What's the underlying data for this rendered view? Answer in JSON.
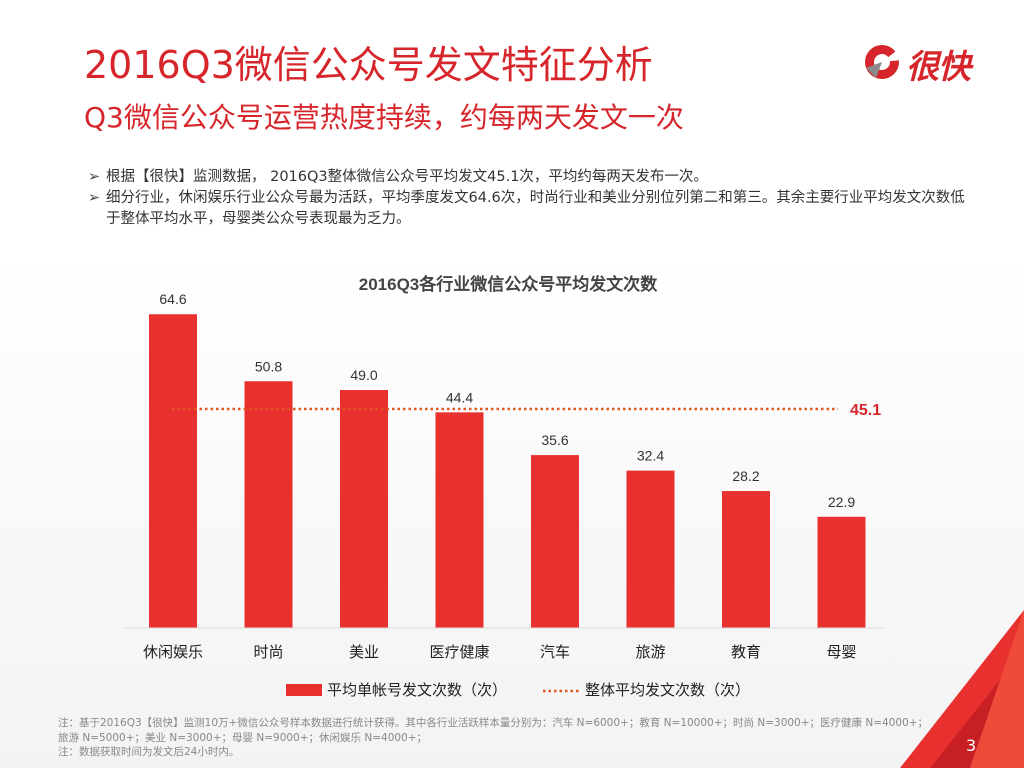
{
  "title": "2016Q3微信公众号发文特征分析",
  "subtitle": "Q3微信公众号运营热度持续，约每两天发文一次",
  "logo": {
    "text": "很快"
  },
  "bullets": [
    "根据【很快】监测数据， 2016Q3整体微信公众号平均发文45.1次，平均约每两天发布一次。",
    "细分行业，休闲娱乐行业公众号最为活跃，平均季度发文64.6次，时尚行业和美业分别位列第二和第三。其余主要行业平均发文次数低于整体平均水平，母婴类公众号表现最为乏力。"
  ],
  "chart_data": {
    "type": "bar",
    "title": "2016Q3各行业微信公众号平均发文次数",
    "categories": [
      "休闲娱乐",
      "时尚",
      "美业",
      "医疗健康",
      "汽车",
      "旅游",
      "教育",
      "母婴"
    ],
    "series": [
      {
        "name": "平均单帐号发文次数（次）",
        "values": [
          64.6,
          50.8,
          49.0,
          44.4,
          35.6,
          32.4,
          28.2,
          22.9
        ]
      }
    ],
    "reference_line": {
      "name": "整体平均发文次数（次）",
      "value": 45.1,
      "label": "45.1"
    },
    "value_labels": [
      "64.6",
      "50.8",
      "49.0",
      "44.4",
      "35.6",
      "32.4",
      "28.2",
      "22.9"
    ],
    "ylim": [
      0,
      70
    ],
    "xlabel": "",
    "ylabel": "",
    "legend_position": "bottom",
    "colors": {
      "bar": "#e8312f",
      "reference": "#e0561f",
      "reference_label": "#d6262b"
    }
  },
  "notes": [
    "注：基于2016Q3【很快】监测10万+微信公众号样本数据进行统计获得。其中各行业活跃样本量分别为：汽车 N=6000+；教育 N=10000+；时尚 N=3000+；医疗健康 N=4000+；旅游 N=5000+；美业 N=3000+；母婴 N=9000+；休闲娱乐 N=4000+；",
    "注：数据获取时间为发文后24小时内。"
  ],
  "page_number": "3",
  "colors": {
    "accent": "#d6262b",
    "text": "#333333",
    "note": "#888888"
  }
}
